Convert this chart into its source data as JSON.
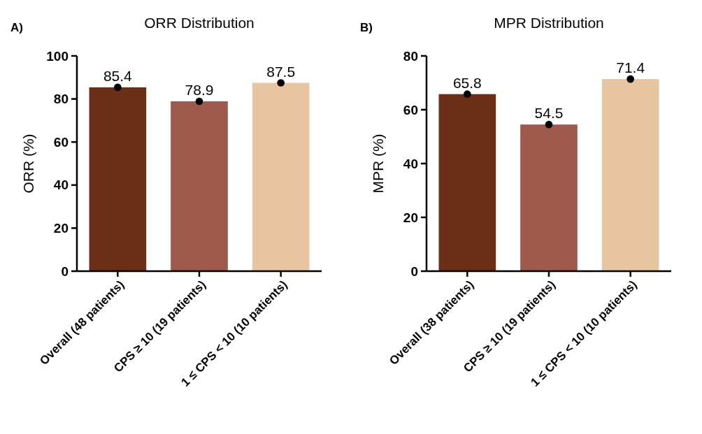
{
  "chart_data": [
    {
      "type": "bar",
      "title": "ORR Distribution",
      "ylabel": "ORR (%)",
      "annotations": [
        "A)"
      ],
      "categories": [
        "Overall (48 patients)",
        "CPS ≥ 10 (19 patients)",
        "1 ≤ CPS < 10 (10 patients)"
      ],
      "ylim": [
        0,
        100
      ],
      "yticks": [
        0,
        20,
        40,
        60,
        80,
        100
      ],
      "grid": false,
      "marker": "circle",
      "series": [
        {
          "type": "bar",
          "colors": [
            "#6b2e17",
            "#9e5b4d",
            "#e8c5a1"
          ],
          "values": [
            85.4,
            78.9,
            87.5
          ]
        },
        {
          "type": "scatter",
          "color": "#000000",
          "x": [
            "Overall (48 patients)",
            "CPS ≥ 10 (19 patients)",
            "1 ≤ CPS < 10 (10 patients)"
          ],
          "values": [
            85.4,
            78.9,
            87.5
          ],
          "value_labels": [
            "85.4",
            "78.9",
            "87.5"
          ]
        }
      ]
    },
    {
      "type": "bar",
      "title": "MPR Distribution",
      "ylabel": "MPR (%)",
      "annotations": [
        "B)"
      ],
      "categories": [
        "Overall (38 patients)",
        "CPS ≥ 10 (19 patients)",
        "1 ≤ CPS < 10 (10 patients)"
      ],
      "ylim": [
        0,
        80
      ],
      "yticks": [
        0,
        20,
        40,
        60,
        80
      ],
      "grid": false,
      "marker": "circle",
      "series": [
        {
          "type": "bar",
          "colors": [
            "#6b2e17",
            "#9e5b4d",
            "#e8c5a1"
          ],
          "values": [
            65.8,
            54.5,
            71.4
          ]
        },
        {
          "type": "scatter",
          "color": "#000000",
          "x": [
            "Overall (38 patients)",
            "CPS ≥ 10 (19 patients)",
            "1 ≤ CPS < 10 (10 patients)"
          ],
          "values": [
            65.8,
            54.5,
            71.4
          ],
          "value_labels": [
            "65.8",
            "54.5",
            "71.4"
          ]
        }
      ]
    }
  ]
}
